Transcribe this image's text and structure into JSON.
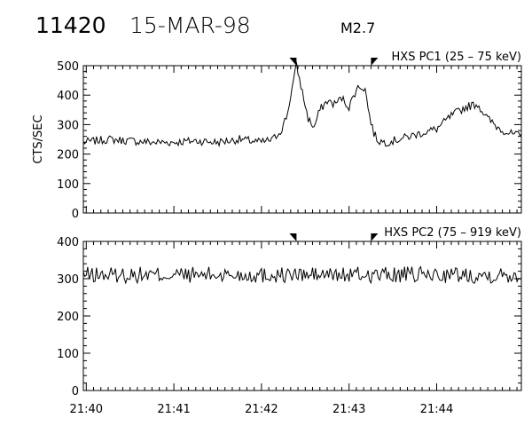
{
  "header": {
    "event_id": "11420",
    "date": "15-MAR-98",
    "flare_class": "M2.7"
  },
  "chart_data": [
    {
      "type": "line",
      "title": "HXS PC1 (25 – 75 keV)",
      "ylabel": "CTS/SEC",
      "xlabel": "",
      "ylim": [
        0,
        500
      ],
      "yticks": [
        "0",
        "100",
        "200",
        "300",
        "400",
        "500"
      ],
      "xlim": [
        "21:39:58",
        "21:44:58"
      ],
      "xticks": [
        "21:40",
        "21:41",
        "21:42",
        "21:43",
        "21:44"
      ],
      "markers": [
        "21:42:24",
        "21:43:15"
      ],
      "grid": false,
      "series": [
        {
          "x": [
            "21:39:58",
            "21:40:15",
            "21:40:30",
            "21:40:45",
            "21:41:00",
            "21:41:15",
            "21:41:30",
            "21:41:45",
            "21:42:00",
            "21:42:08",
            "21:42:14",
            "21:42:18",
            "21:42:20",
            "21:42:24",
            "21:42:28",
            "21:42:32",
            "21:42:36",
            "21:42:40",
            "21:42:45",
            "21:42:50",
            "21:42:55",
            "21:43:00",
            "21:43:05",
            "21:43:08",
            "21:43:11",
            "21:43:14",
            "21:43:17",
            "21:43:20",
            "21:43:25",
            "21:43:30",
            "21:43:45",
            "21:44:00",
            "21:44:10",
            "21:44:20",
            "21:44:28",
            "21:44:35",
            "21:44:42",
            "21:44:50",
            "21:44:58"
          ],
          "values": [
            240,
            250,
            245,
            240,
            240,
            245,
            240,
            250,
            240,
            250,
            285,
            340,
            400,
            500,
            410,
            320,
            290,
            350,
            380,
            370,
            390,
            360,
            420,
            430,
            420,
            330,
            270,
            245,
            240,
            245,
            265,
            285,
            330,
            360,
            370,
            320,
            290,
            270,
            260
          ]
        }
      ]
    },
    {
      "type": "line",
      "title": "HXS PC2 (75 – 919 keV)",
      "ylabel": "",
      "xlabel": "",
      "ylim": [
        0,
        400
      ],
      "yticks": [
        "0",
        "100",
        "200",
        "300",
        "400"
      ],
      "xlim": [
        "21:39:58",
        "21:44:58"
      ],
      "xticks": [
        "21:40",
        "21:41",
        "21:42",
        "21:43",
        "21:44"
      ],
      "markers": [
        "21:42:24",
        "21:43:15"
      ],
      "grid": false,
      "series": [
        {
          "x": [
            "21:39:58",
            "21:44:58"
          ],
          "values": [
            310,
            310
          ]
        }
      ]
    }
  ]
}
